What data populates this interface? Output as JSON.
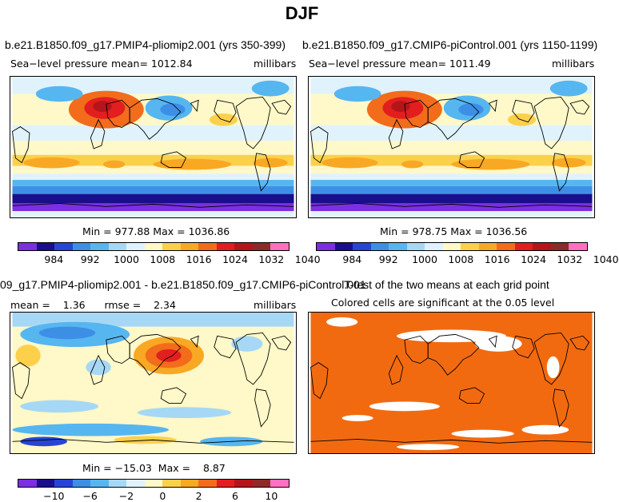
{
  "title": "DJF",
  "colorbar_colors": [
    "#7b2fe0",
    "#1a0e8c",
    "#2645d6",
    "#3d8fe6",
    "#56b6f0",
    "#a6d8f5",
    "#e0f2fb",
    "#fff8c8",
    "#fcd04b",
    "#f9a824",
    "#f26c1b",
    "#e21e1e",
    "#b5151a",
    "#8f2a2a",
    "#ff70c0"
  ],
  "panels": {
    "top_left": {
      "title": "b.e21.B1850.f09_g17.PMIP4-pliomip2.001 (yrs 350-399)",
      "variable": "Sea−level pressure",
      "stat_text": "mean=  1012.84",
      "units": "millibars",
      "minmax": "Min = 977.88  Max = 1036.86"
    },
    "top_right": {
      "title": "b.e21.B1850.f09_g17.CMIP6-piControl.001 (yrs 1150-1199)",
      "variable": "Sea−level pressure",
      "stat_text": "mean=  1011.49",
      "units": "millibars",
      "minmax": "Min = 978.75  Max = 1036.56"
    },
    "bottom_left": {
      "title": "09_g17.PMIP4-pliomip2.001 - b.e21.B1850.f09_g17.CMIP6-piControl.001",
      "stat_text": "mean =    1.36      rmse =    2.34",
      "units": "millibars",
      "minmax": "Min = −15.03  Max =    8.87"
    },
    "bottom_right": {
      "title": "T-test of the two means at each grid point",
      "subtitle": "Colored cells are significant at the 0.05 level",
      "sig_color": "#f26a10"
    }
  },
  "chart_data": [
    {
      "type": "heatmap",
      "title": "b.e21.B1850.f09_g17.PMIP4-pliomip2.001 (yrs 350-399)",
      "variable": "Sea-level pressure",
      "units": "millibars",
      "mean": 1012.84,
      "min": 977.88,
      "max": 1036.86,
      "colorbar_ticks": [
        "984",
        "992",
        "1000",
        "1008",
        "1016",
        "1024",
        "1032",
        "1040"
      ]
    },
    {
      "type": "heatmap",
      "title": "b.e21.B1850.f09_g17.CMIP6-piControl.001 (yrs 1150-1199)",
      "variable": "Sea-level pressure",
      "units": "millibars",
      "mean": 1011.49,
      "min": 978.75,
      "max": 1036.56,
      "colorbar_ticks": [
        "984",
        "992",
        "1000",
        "1008",
        "1016",
        "1024",
        "1032",
        "1040"
      ]
    },
    {
      "type": "heatmap",
      "title": "09_g17.PMIP4-pliomip2.001 - b.e21.B1850.f09_g17.CMIP6-piControl.001",
      "units": "millibars",
      "mean": 1.36,
      "rmse": 2.34,
      "min": -15.03,
      "max": 8.87,
      "colorbar_ticks": [
        "−10",
        "−6",
        "−2",
        "0",
        "2",
        "6",
        "10"
      ]
    },
    {
      "type": "heatmap",
      "title": "T-test of the two means at each grid point",
      "subtitle": "Colored cells are significant at the 0.05 level"
    }
  ]
}
